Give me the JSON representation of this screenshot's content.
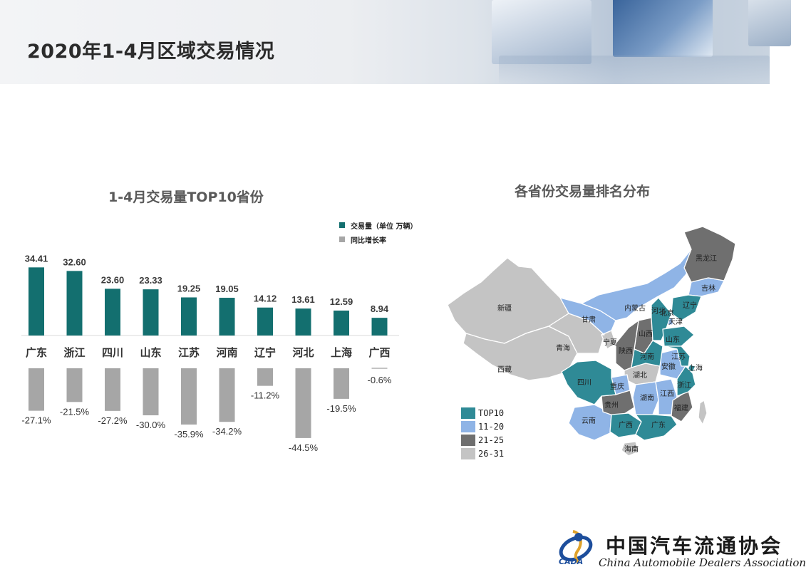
{
  "slide": {
    "title": "2020年1-4月区域交易情况"
  },
  "bar_chart": {
    "title": "1-4月交易量TOP10省份",
    "legend": [
      {
        "label": "交易量（单位 万辆）",
        "color": "#136f6f"
      },
      {
        "label": "同比增长率",
        "color": "#a6a6a6"
      }
    ]
  },
  "map_chart": {
    "title": "各省份交易量排名分布",
    "legend": [
      {
        "label": "TOP10",
        "color": "#2f8a96"
      },
      {
        "label": "11-20",
        "color": "#8fb4e6"
      },
      {
        "label": "21-25",
        "color": "#6f6f6f"
      },
      {
        "label": "26-31",
        "color": "#c4c4c4"
      }
    ],
    "labels": {
      "xinjiang": "新疆",
      "xizang": "西藏",
      "qinghai": "青海",
      "gansu": "甘肃",
      "neimenggu": "内蒙古",
      "heilongjiang": "黑龙江",
      "jilin": "吉林",
      "liaoning": "辽宁",
      "hebei": "河北",
      "beijing": "北京",
      "tianjin": "天津",
      "shanxi": "山西",
      "shandong": "山东",
      "ningxia": "宁夏",
      "shaanxi": "陕西",
      "henan": "河南",
      "jiangsu": "江苏",
      "anhui": "安徽",
      "shanghai": "上海",
      "hubei": "湖北",
      "sichuan": "四川",
      "chongqing": "重庆",
      "zhejiang": "浙江",
      "guizhou": "贵州",
      "hunan": "湖南",
      "jiangxi": "江西",
      "fujian": "福建",
      "yunnan": "云南",
      "guangxi": "广西",
      "guangdong": "广东",
      "hainan": "海南"
    }
  },
  "footer": {
    "org_cn": "中国汽车流通协会",
    "org_en": "China Automobile Dealers Association",
    "logo_text": "CADA"
  },
  "chart_data": [
    {
      "type": "bar",
      "title": "1-4月交易量TOP10省份",
      "categories": [
        "广东",
        "浙江",
        "四川",
        "山东",
        "江苏",
        "河南",
        "辽宁",
        "河北",
        "上海",
        "广西"
      ],
      "series": [
        {
          "name": "交易量（单位 万辆）",
          "values": [
            34.41,
            32.6,
            23.6,
            23.33,
            19.25,
            19.05,
            14.12,
            13.61,
            12.59,
            8.94
          ],
          "value_labels": [
            "34.41",
            "32.60",
            "23.60",
            "23.33",
            "19.25",
            "19.05",
            "14.12",
            "13.61",
            "12.59",
            "8.94"
          ],
          "color": "#136f6f"
        },
        {
          "name": "同比增长率",
          "values": [
            -27.1,
            -21.5,
            -27.2,
            -30.0,
            -35.9,
            -34.2,
            -11.2,
            -44.5,
            -19.5,
            -0.6
          ],
          "value_labels": [
            "-27.1%",
            "-21.5%",
            "-27.2%",
            "-30.0%",
            "-35.9%",
            "-34.2%",
            "-11.2%",
            "-44.5%",
            "-19.5%",
            "-0.6%"
          ],
          "color": "#a6a6a6"
        }
      ],
      "legend": "top-right",
      "grid": false
    },
    {
      "type": "other",
      "title": "各省份交易量排名分布",
      "legend_entries": [
        "TOP10",
        "11-20",
        "21-25",
        "26-31"
      ],
      "categories": {
        "TOP10": [
          "广东",
          "浙江",
          "四川",
          "山东",
          "江苏",
          "河南",
          "辽宁",
          "河北",
          "上海",
          "广西"
        ],
        "11-20": [
          "内蒙古",
          "吉林",
          "北京",
          "天津",
          "甘肃",
          "重庆",
          "湖南",
          "江西",
          "安徽",
          "云南"
        ],
        "21-25": [
          "黑龙江",
          "山西",
          "陕西",
          "贵州",
          "福建"
        ],
        "26-31": [
          "新疆",
          "西藏",
          "青海",
          "宁夏",
          "湖北",
          "海南"
        ]
      }
    }
  ]
}
